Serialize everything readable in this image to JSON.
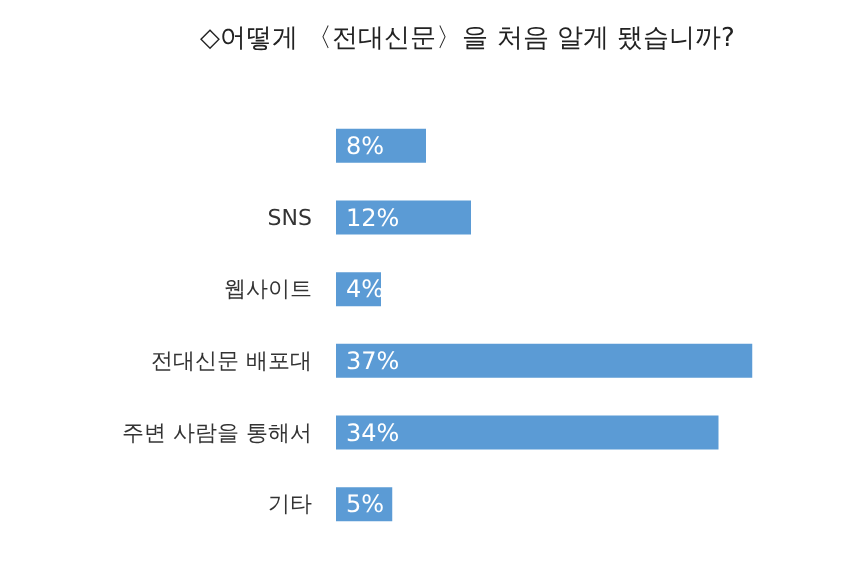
{
  "chart_data": {
    "type": "bar",
    "orientation": "horizontal",
    "title": "◇어떻게 〈전대신문〉을 처음 알게 됐습니까?",
    "categories": [
      null,
      "SNS",
      "웹사이트",
      "전대신문 배포대",
      "주변 사람을 통해서",
      "기타"
    ],
    "values": [
      8,
      12,
      4,
      37,
      34,
      5
    ],
    "value_labels": [
      "8%",
      "12%",
      "4%",
      "37%",
      "34%",
      "5%"
    ],
    "color": "#5b9bd5"
  }
}
